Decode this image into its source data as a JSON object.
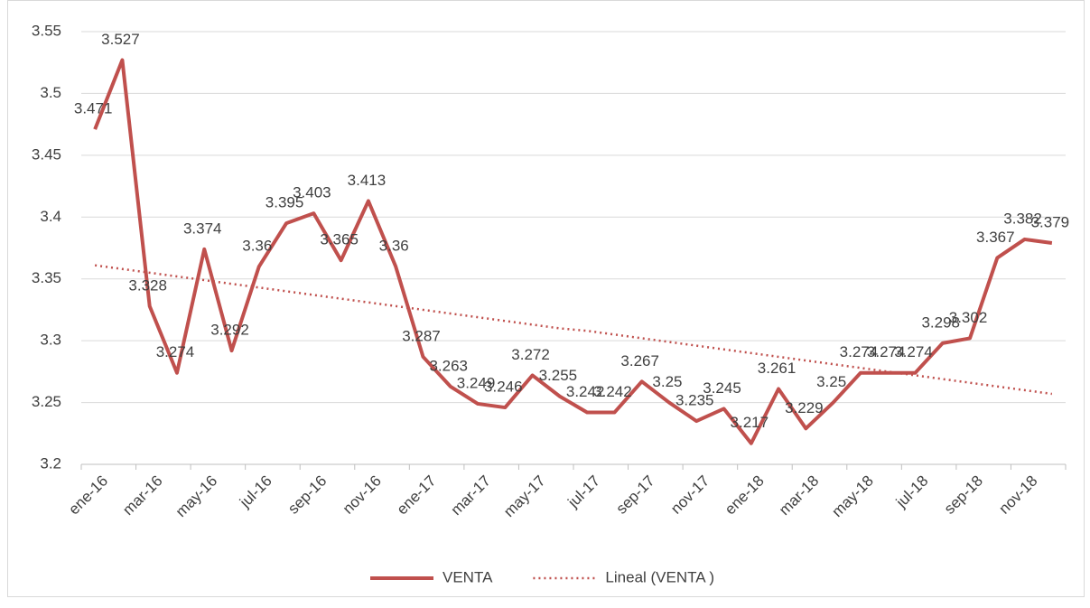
{
  "chart_data": {
    "type": "line",
    "categories": [
      "ene-16",
      null,
      "mar-16",
      null,
      "may-16",
      null,
      "jul-16",
      null,
      "sep-16",
      null,
      "nov-16",
      null,
      "ene-17",
      null,
      "mar-17",
      null,
      "may-17",
      null,
      "jul-17",
      null,
      "sep-17",
      null,
      "nov-17",
      null,
      "ene-18",
      null,
      "mar-18",
      null,
      "may-18",
      null,
      "jul-18",
      null,
      "sep-18",
      null,
      "nov-18",
      null
    ],
    "series": [
      {
        "name": "VENTA",
        "color": "#c0504d",
        "style": "solid",
        "data_labels": true,
        "values": [
          3.471,
          3.527,
          3.328,
          3.274,
          3.374,
          3.292,
          3.36,
          3.395,
          3.403,
          3.365,
          3.413,
          3.36,
          3.287,
          3.263,
          3.249,
          3.246,
          3.272,
          3.255,
          3.242,
          3.242,
          3.267,
          3.25,
          3.235,
          3.245,
          3.217,
          3.261,
          3.229,
          3.25,
          3.274,
          3.274,
          3.274,
          3.298,
          3.302,
          3.367,
          3.382,
          3.379
        ]
      },
      {
        "name": "Lineal (VENTA )",
        "color": "#c0504d",
        "style": "dotted",
        "data_labels": false,
        "values": [
          3.361,
          3.358,
          3.355,
          3.352,
          3.349,
          3.346,
          3.343,
          3.34,
          3.337,
          3.334,
          3.331,
          3.328,
          3.325,
          3.322,
          3.319,
          3.316,
          3.313,
          3.31,
          3.308,
          3.305,
          3.302,
          3.299,
          3.296,
          3.293,
          3.29,
          3.287,
          3.284,
          3.281,
          3.278,
          3.275,
          3.272,
          3.269,
          3.266,
          3.263,
          3.26,
          3.257
        ]
      }
    ],
    "ylim": [
      3.2,
      3.55
    ],
    "yticks": [
      3.2,
      3.25,
      3.3,
      3.35,
      3.4,
      3.45,
      3.5,
      3.55
    ],
    "grid": true,
    "legend": "bottom"
  }
}
